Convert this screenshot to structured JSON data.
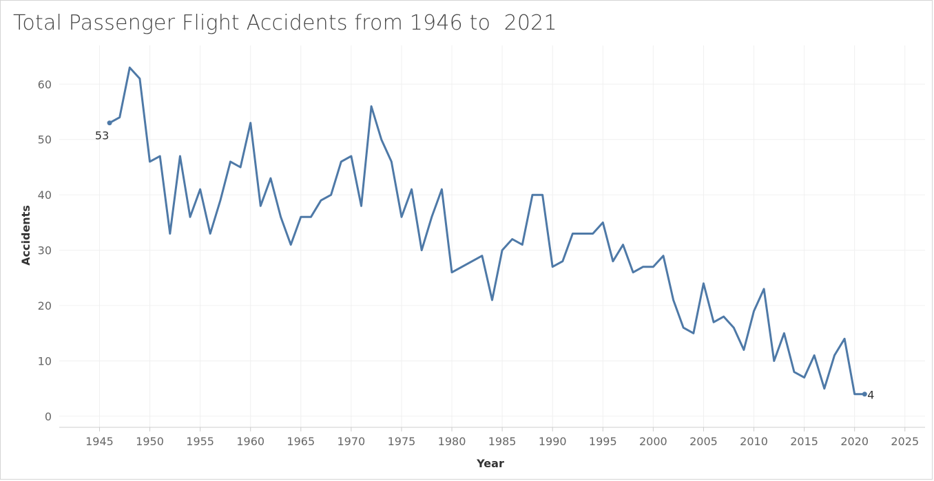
{
  "chart_data": {
    "type": "line",
    "title": "Total Passenger Flight Accidents from 1946 to  2021",
    "xlabel": "Year",
    "ylabel": "Accidents",
    "xlim": [
      1941,
      2027
    ],
    "ylim": [
      -2,
      67
    ],
    "x_ticks": [
      1945,
      1950,
      1955,
      1960,
      1965,
      1970,
      1975,
      1980,
      1985,
      1990,
      1995,
      2000,
      2005,
      2010,
      2015,
      2020,
      2025
    ],
    "y_ticks": [
      0,
      10,
      20,
      30,
      40,
      50,
      60
    ],
    "grid": true,
    "line_color": "#4e79a7",
    "series": [
      {
        "x": [
          1946,
          1947,
          1948,
          1949,
          1950,
          1951,
          1952,
          1953,
          1954,
          1955,
          1956,
          1957,
          1958,
          1959,
          1960,
          1961,
          1962,
          1963,
          1964,
          1965,
          1966,
          1967,
          1968,
          1969,
          1970,
          1971,
          1972,
          1973,
          1974,
          1975,
          1976,
          1977,
          1978,
          1979,
          1980,
          1983,
          1984,
          1985,
          1986,
          1987,
          1988,
          1989,
          1990,
          1991,
          1992,
          1993,
          1994,
          1995,
          1996,
          1997,
          1998,
          1999,
          2000,
          2001,
          2002,
          2003,
          2004,
          2005,
          2006,
          2007,
          2008,
          2009,
          2010,
          2011,
          2012,
          2013,
          2014,
          2015,
          2016,
          2017,
          2018,
          2019,
          2020,
          2021
        ],
        "values": [
          53,
          54,
          63,
          61,
          46,
          47,
          33,
          47,
          36,
          41,
          33,
          39,
          46,
          45,
          53,
          38,
          43,
          36,
          31,
          36,
          36,
          39,
          40,
          46,
          47,
          38,
          56,
          50,
          46,
          36,
          41,
          30,
          36,
          41,
          26,
          29,
          21,
          30,
          32,
          31,
          40,
          40,
          27,
          28,
          33,
          33,
          33,
          35,
          28,
          31,
          26,
          27,
          27,
          29,
          21,
          16,
          15,
          24,
          17,
          18,
          16,
          12,
          19,
          23,
          10,
          15,
          8,
          7,
          11,
          5,
          11,
          14,
          4,
          4
        ]
      }
    ],
    "data_labels": [
      {
        "x": 1946,
        "y": 53,
        "text": "53"
      },
      {
        "x": 2021,
        "y": 4,
        "text": "4"
      }
    ]
  }
}
